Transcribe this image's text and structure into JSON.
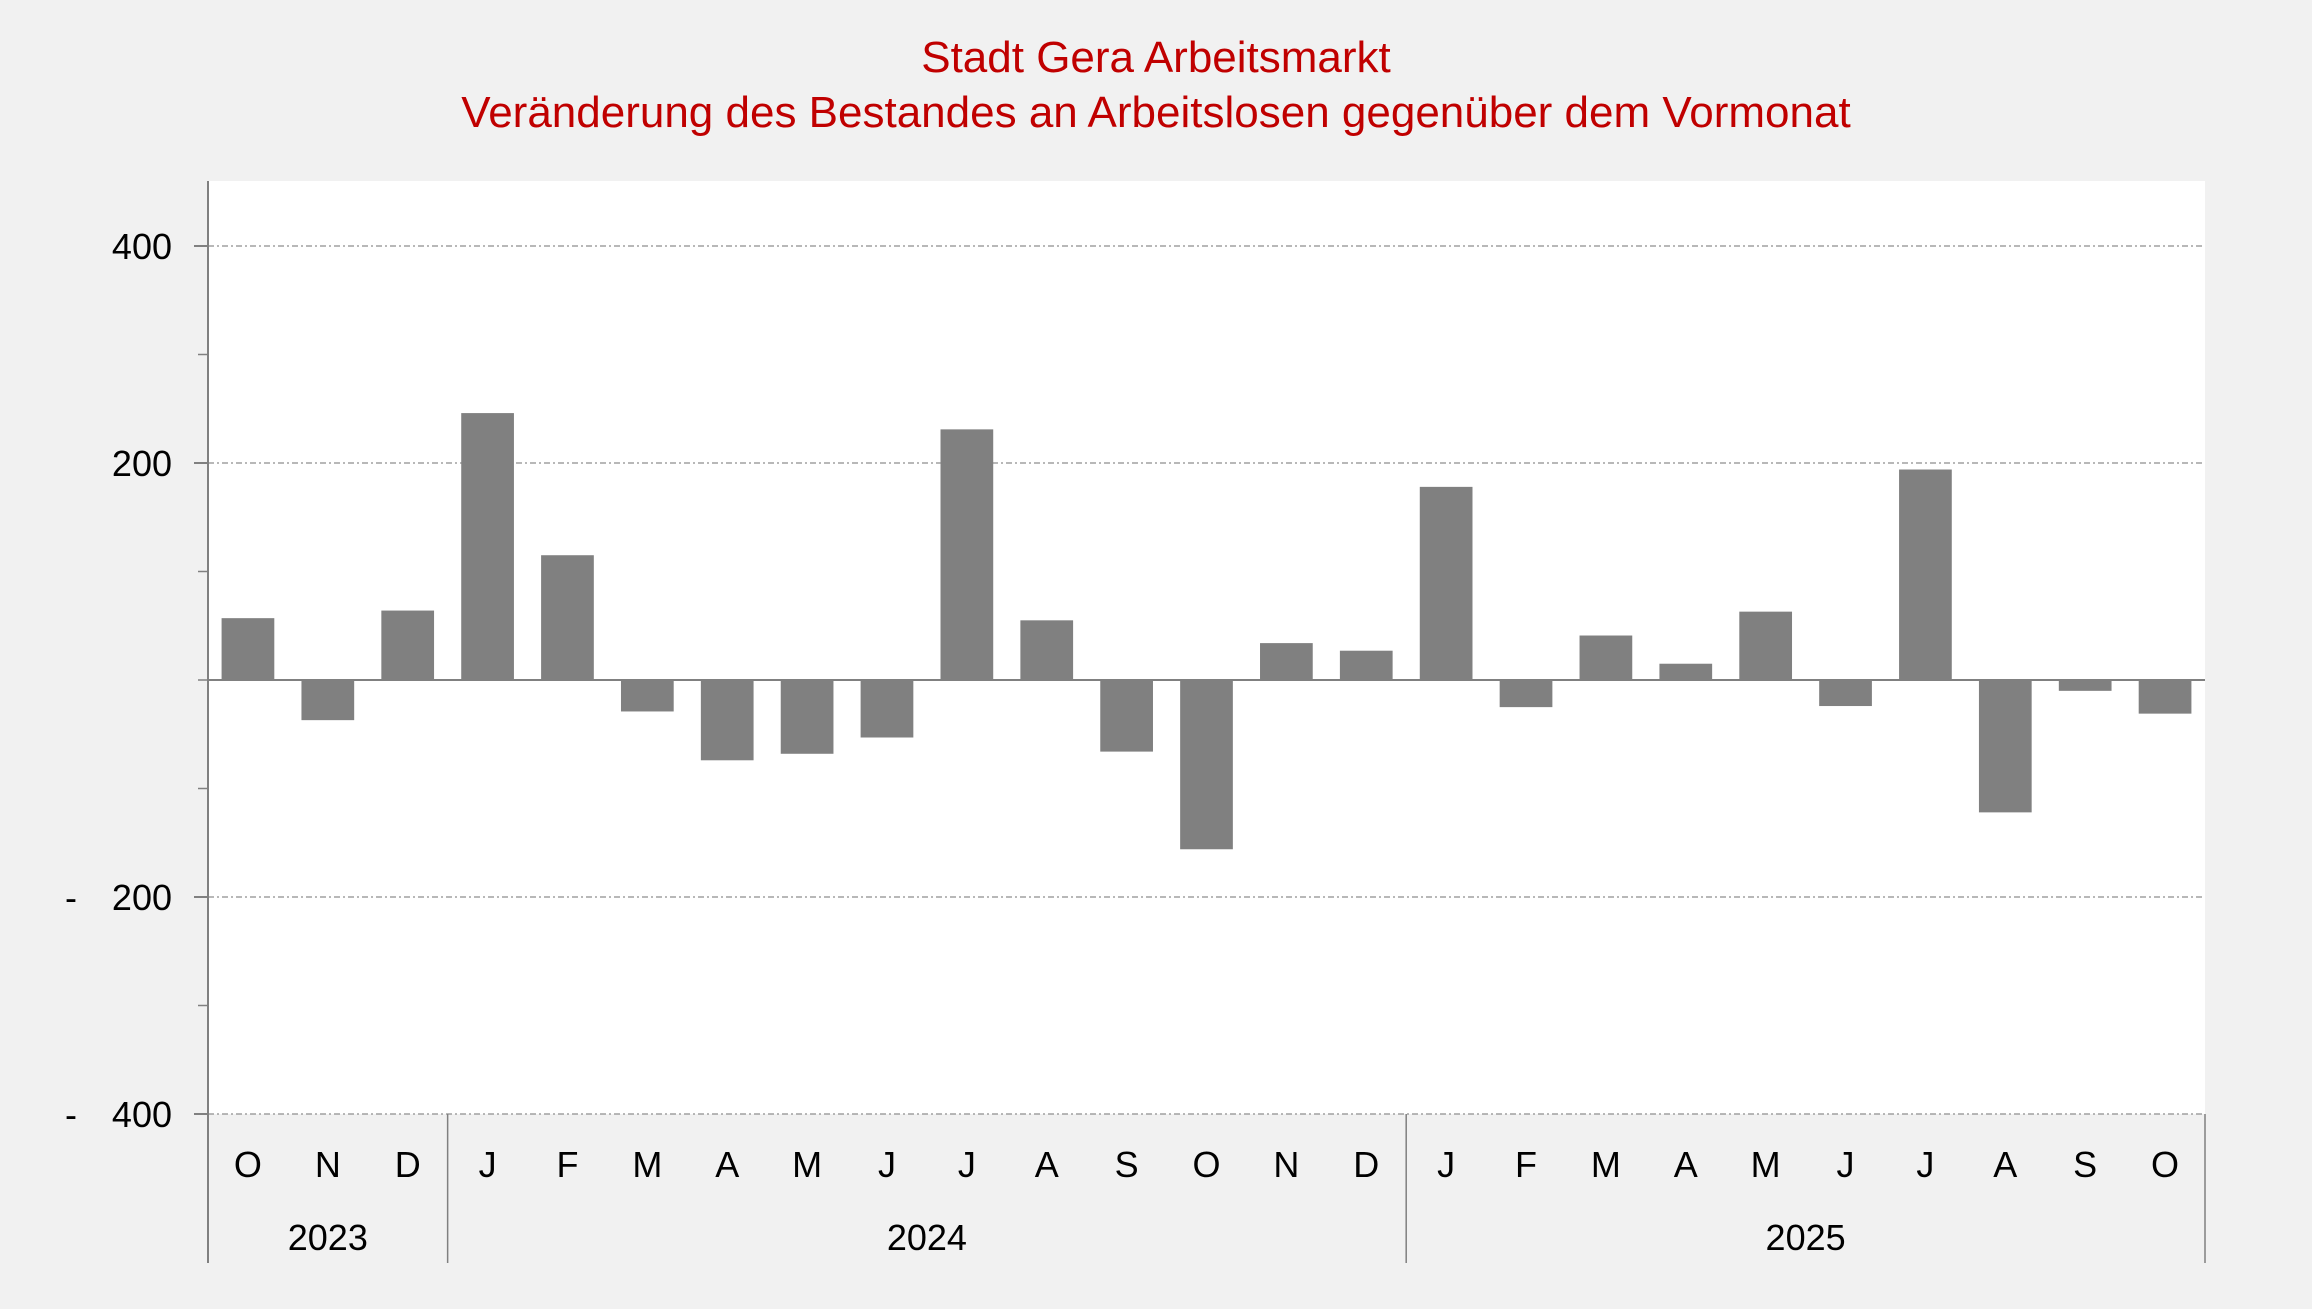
{
  "title": {
    "line1": "Stadt Gera Arbeitsmarkt",
    "line2": "Veränderung des Bestandes an Arbeitslosen gegenüber dem Vormonat"
  },
  "colors": {
    "title": "#c00000",
    "bar": "#808080",
    "plot_background": "#ffffff",
    "page_background": "#f1f1f1",
    "gridline": "#a0a0a0",
    "axis": "#808080"
  },
  "chart_data": {
    "type": "bar",
    "title": "Stadt Gera Arbeitsmarkt — Veränderung des Bestandes an Arbeitslosen gegenüber dem Vormonat",
    "xlabel": "",
    "ylabel": "",
    "ylim": [
      -400,
      460
    ],
    "yticks": [
      400,
      200,
      -200,
      -400
    ],
    "ytick_labels": [
      "400",
      "200",
      "-  200",
      "-  400"
    ],
    "minor_yticks": [
      300,
      100,
      0,
      -100,
      -300
    ],
    "grid": true,
    "legend": null,
    "categories": [
      "O",
      "N",
      "D",
      "J",
      "F",
      "M",
      "A",
      "M",
      "J",
      "J",
      "A",
      "S",
      "O",
      "N",
      "D",
      "J",
      "F",
      "M",
      "A",
      "M",
      "J",
      "J",
      "A",
      "S",
      "O"
    ],
    "years": [
      {
        "label": "2023",
        "start": 0,
        "count": 3
      },
      {
        "label": "2024",
        "start": 3,
        "count": 12
      },
      {
        "label": "2025",
        "start": 15,
        "count": 10
      }
    ],
    "values": [
      57,
      -37,
      64,
      246,
      115,
      -29,
      -74,
      -68,
      -53,
      231,
      55,
      -66,
      -156,
      34,
      27,
      178,
      -25,
      41,
      15,
      63,
      -24,
      194,
      -122,
      -10,
      -31
    ]
  }
}
